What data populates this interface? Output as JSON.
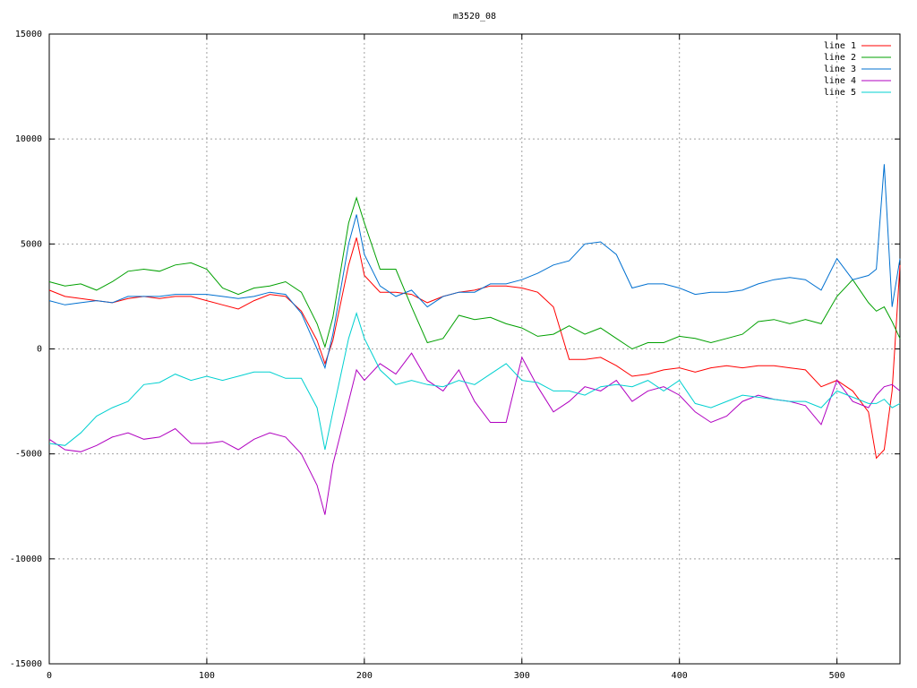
{
  "chart_data": {
    "type": "line",
    "title": "m3520_08",
    "x": [
      0,
      10,
      20,
      30,
      40,
      50,
      60,
      70,
      80,
      90,
      100,
      110,
      120,
      130,
      140,
      150,
      160,
      170,
      175,
      180,
      190,
      195,
      200,
      210,
      220,
      230,
      240,
      250,
      260,
      270,
      280,
      290,
      300,
      310,
      320,
      330,
      340,
      350,
      360,
      370,
      380,
      390,
      400,
      410,
      420,
      430,
      440,
      450,
      460,
      470,
      480,
      490,
      500,
      510,
      520,
      525,
      530,
      535,
      540
    ],
    "series": [
      {
        "name": "line 1",
        "color": "#ff0000",
        "values": [
          2800,
          2500,
          2400,
          2300,
          2200,
          2400,
          2500,
          2400,
          2500,
          2500,
          2300,
          2100,
          1900,
          2300,
          2600,
          2500,
          1800,
          400,
          -700,
          400,
          4000,
          5300,
          3500,
          2700,
          2700,
          2600,
          2200,
          2500,
          2700,
          2800,
          3000,
          3000,
          2900,
          2700,
          2000,
          -500,
          -500,
          -400,
          -800,
          -1300,
          -1200,
          -1000,
          -900,
          -1100,
          -900,
          -800,
          -900,
          -800,
          -800,
          -900,
          -1000,
          -1800,
          -1500,
          -2000,
          -3000,
          -5200,
          -4800,
          -2000,
          4000
        ]
      },
      {
        "name": "line 2",
        "color": "#00a000",
        "values": [
          3200,
          3000,
          3100,
          2800,
          3200,
          3700,
          3800,
          3700,
          4000,
          4100,
          3800,
          2900,
          2600,
          2900,
          3000,
          3200,
          2700,
          1200,
          100,
          1500,
          6000,
          7200,
          6000,
          3800,
          3800,
          2000,
          300,
          500,
          1600,
          1400,
          1500,
          1200,
          1000,
          600,
          700,
          1100,
          700,
          1000,
          500,
          0,
          300,
          300,
          600,
          500,
          300,
          500,
          700,
          1300,
          1400,
          1200,
          1400,
          1200,
          2500,
          3300,
          2200,
          1800,
          2000,
          1300,
          500
        ]
      },
      {
        "name": "line 3",
        "color": "#0070d0",
        "values": [
          2300,
          2100,
          2200,
          2300,
          2200,
          2500,
          2500,
          2500,
          2600,
          2600,
          2600,
          2500,
          2400,
          2500,
          2700,
          2600,
          1700,
          0,
          -900,
          700,
          5000,
          6400,
          4500,
          3000,
          2500,
          2800,
          2000,
          2500,
          2700,
          2700,
          3100,
          3100,
          3300,
          3600,
          4000,
          4200,
          5000,
          5100,
          4500,
          2900,
          3100,
          3100,
          2900,
          2600,
          2700,
          2700,
          2800,
          3100,
          3300,
          3400,
          3300,
          2800,
          4300,
          3300,
          3500,
          3800,
          8800,
          2000,
          4300
        ]
      },
      {
        "name": "line 4",
        "color": "#b000c0",
        "values": [
          -4300,
          -4800,
          -4900,
          -4600,
          -4200,
          -4000,
          -4300,
          -4200,
          -3800,
          -4500,
          -4500,
          -4400,
          -4800,
          -4300,
          -4000,
          -4200,
          -5000,
          -6500,
          -7900,
          -5500,
          -2500,
          -1000,
          -1500,
          -700,
          -1200,
          -200,
          -1500,
          -2000,
          -1000,
          -2500,
          -3500,
          -3500,
          -400,
          -1800,
          -3000,
          -2500,
          -1800,
          -2000,
          -1500,
          -2500,
          -2000,
          -1800,
          -2200,
          -3000,
          -3500,
          -3200,
          -2500,
          -2200,
          -2400,
          -2500,
          -2700,
          -3600,
          -1500,
          -2500,
          -2800,
          -2200,
          -1800,
          -1700,
          -2000
        ]
      },
      {
        "name": "line 5",
        "color": "#00d0d0",
        "values": [
          -4500,
          -4600,
          -4000,
          -3200,
          -2800,
          -2500,
          -1700,
          -1600,
          -1200,
          -1500,
          -1300,
          -1500,
          -1300,
          -1100,
          -1100,
          -1400,
          -1400,
          -2800,
          -4800,
          -3000,
          500,
          1700,
          500,
          -1000,
          -1700,
          -1500,
          -1700,
          -1800,
          -1500,
          -1700,
          -1200,
          -700,
          -1500,
          -1600,
          -2000,
          -2000,
          -2200,
          -1800,
          -1700,
          -1800,
          -1500,
          -2000,
          -1500,
          -2600,
          -2800,
          -2500,
          -2200,
          -2300,
          -2400,
          -2500,
          -2500,
          -2800,
          -2000,
          -2300,
          -2600,
          -2600,
          -2400,
          -2800,
          -2600
        ]
      }
    ],
    "xlim": [
      0,
      540
    ],
    "ylim": [
      -15000,
      15000
    ],
    "xticks": [
      0,
      100,
      200,
      300,
      400,
      500
    ],
    "yticks": [
      -15000,
      -10000,
      -5000,
      0,
      5000,
      10000,
      15000
    ],
    "grid": true,
    "legend": "top-right"
  }
}
